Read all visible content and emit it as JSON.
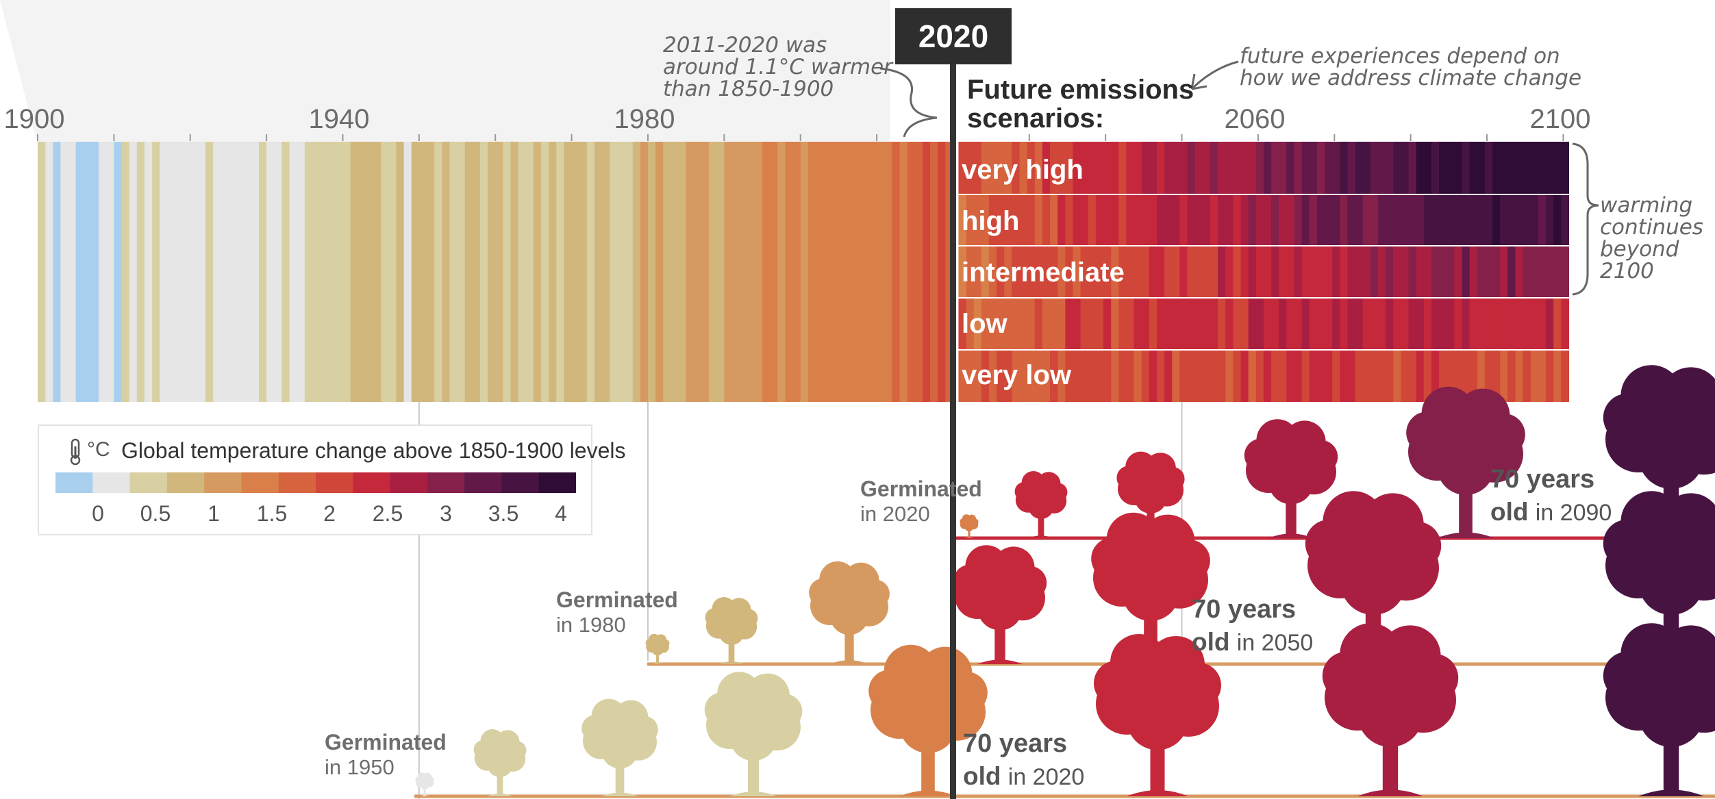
{
  "header": {
    "year_marker": "2020"
  },
  "axis": {
    "years": [
      "1900",
      "1940",
      "1980",
      "2060",
      "2100"
    ]
  },
  "annotations": {
    "past_warming": [
      "2011-2020 was",
      "around 1.1°C warmer",
      "than 1850-1900"
    ],
    "future_experiences": [
      "future experiences depend on",
      "how we address climate change"
    ],
    "beyond_2100": [
      "warming",
      "continues",
      "beyond",
      "2100"
    ]
  },
  "scenarios": {
    "title_line1": "Future emissions",
    "title_line2": "scenarios:",
    "labels": [
      "very high",
      "high",
      "intermediate",
      "low",
      "very low"
    ]
  },
  "legend": {
    "unit": "°C",
    "title": "Global temperature change above 1850-1900 levels",
    "ticks": [
      "0",
      "0.5",
      "1",
      "1.5",
      "2",
      "2.5",
      "3",
      "3.5",
      "4"
    ],
    "colors": [
      "#a9cfef",
      "#e6e6e6",
      "#d8d0a2",
      "#d2b77c",
      "#d69a60",
      "#d9804a",
      "#d6643e",
      "#d04638",
      "#c6283b",
      "#a81f42",
      "#84204a",
      "#62194a",
      "#471442",
      "#2e0c35"
    ]
  },
  "trees": [
    {
      "germ_label": "Germinated",
      "germ_year": "in 2020",
      "age_line": "70 years",
      "old_label": "old",
      "old_year": "in 2090"
    },
    {
      "germ_label": "Germinated",
      "germ_year": "in 1980",
      "age_line": "70 years",
      "old_label": "old",
      "old_year": "in 2050"
    },
    {
      "germ_label": "Germinated",
      "germ_year": "in 1950",
      "age_line": "70 years",
      "old_label": "old",
      "old_year": "in 2020"
    }
  ]
}
